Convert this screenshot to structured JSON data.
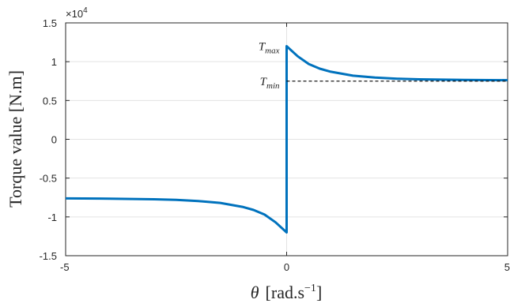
{
  "chart_data": {
    "type": "line",
    "xlabel_symbol": "θ",
    "xlabel_unit": "[rad.s",
    "xlabel_exp": "−1",
    "xlabel_close": "]",
    "ylabel": "Torque value [N.m]",
    "y_multiplier_base": "×10",
    "y_multiplier_exp": "4",
    "xlim": [
      -5,
      5
    ],
    "ylim": [
      -15000,
      15000
    ],
    "grid": true,
    "x_ticks": [
      -5,
      0,
      5
    ],
    "x_tick_labels": [
      "-5",
      "0",
      "5"
    ],
    "y_ticks": [
      -15000,
      -10000,
      -5000,
      0,
      5000,
      10000,
      15000
    ],
    "y_tick_labels": [
      "-1.5",
      "-1",
      "-0.5",
      "0",
      "0.5",
      "1",
      "1.5"
    ],
    "series": [
      {
        "color": "#0072BD",
        "x": [
          -5,
          -4,
          -3,
          -2.5,
          -2,
          -1.5,
          -1,
          -0.75,
          -0.5,
          -0.25,
          0,
          0,
          0,
          0.25,
          0.5,
          0.75,
          1,
          1.5,
          2,
          2.5,
          3,
          4,
          5
        ],
        "y": [
          -7620,
          -7650,
          -7730,
          -7810,
          -7950,
          -8200,
          -8700,
          -9100,
          -9700,
          -10700,
          -12000,
          0,
          12000,
          10700,
          9700,
          9100,
          8700,
          8200,
          7950,
          7810,
          7730,
          7650,
          7620
        ]
      },
      {
        "color": "#000000",
        "dashed": true,
        "x": [
          0,
          5
        ],
        "y": [
          7500,
          7500
        ]
      }
    ],
    "annotations": [
      {
        "base": "T",
        "sub": "max",
        "x": 0,
        "y": 12000
      },
      {
        "base": "T",
        "sub": "min",
        "x": 0,
        "y": 7500
      }
    ]
  }
}
